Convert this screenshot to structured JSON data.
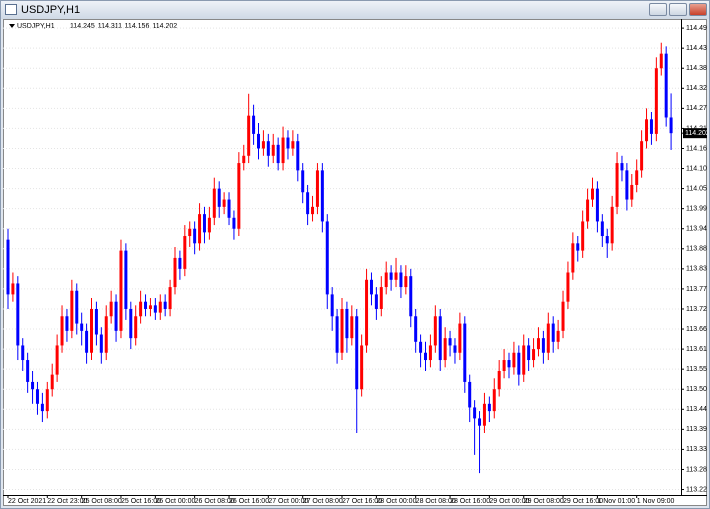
{
  "window_title": "USDJPY,H1",
  "chart_data": {
    "type": "candlestick",
    "symbol": "USDJPY,H1",
    "up_color": "#ff0000",
    "down_color": "#0000ff",
    "grid": true,
    "ylim": [
      113.21,
      114.515
    ],
    "yticks": [
      {
        "value": 114.49,
        "label": "114.490"
      },
      114.435,
      {
        "value": 114.38,
        "label": "114.380"
      },
      114.325,
      {
        "value": 114.27,
        "label": "114.270"
      },
      114.215,
      {
        "value": 114.16,
        "label": "114.160"
      },
      114.105,
      {
        "value": 114.05,
        "label": "114.050"
      },
      113.995,
      {
        "value": 113.94,
        "label": "113.940"
      },
      113.885,
      {
        "value": 113.83,
        "label": "113.830"
      },
      113.775,
      {
        "value": 113.72,
        "label": "113.720"
      },
      113.665,
      {
        "value": 113.61,
        "label": "113.610"
      },
      113.555,
      {
        "value": 113.5,
        "label": "113.500"
      },
      113.445,
      {
        "value": 113.39,
        "label": "113.390"
      },
      113.335,
      {
        "value": 113.28,
        "label": "113.280"
      },
      113.225
    ],
    "categories": [
      "22 Oct 2021",
      null,
      null,
      null,
      null,
      null,
      null,
      null,
      "22 Oct 23:00",
      null,
      null,
      null,
      null,
      null,
      null,
      "25 Oct 08:00",
      null,
      null,
      null,
      null,
      null,
      null,
      null,
      "25 Oct 16:00",
      null,
      null,
      null,
      null,
      null,
      null,
      "26 Oct 00:00",
      null,
      null,
      null,
      null,
      null,
      null,
      null,
      "26 Oct 08:00",
      null,
      null,
      null,
      null,
      null,
      null,
      "26 Oct 16:00",
      null,
      null,
      null,
      null,
      null,
      null,
      null,
      "27 Oct 00:00",
      null,
      null,
      null,
      null,
      null,
      null,
      "27 Oct 08:00",
      null,
      null,
      null,
      null,
      null,
      null,
      null,
      "27 Oct 16:00",
      null,
      null,
      null,
      null,
      null,
      null,
      "28 Oct 00:00",
      null,
      null,
      null,
      null,
      null,
      null,
      null,
      "28 Oct 08:00",
      null,
      null,
      null,
      null,
      null,
      null,
      "28 Oct 16:00",
      null,
      null,
      null,
      null,
      null,
      null,
      null,
      "29 Oct 00:00",
      null,
      null,
      null,
      null,
      null,
      null,
      "29 Oct 08:00",
      null,
      null,
      null,
      null,
      null,
      null,
      null,
      "29 Oct 16:00",
      null,
      null,
      null,
      null,
      null,
      null,
      "1 Nov 01:00",
      null,
      null,
      null,
      null,
      null,
      null,
      null,
      "1 Nov 09:00",
      null,
      null,
      null,
      null,
      null,
      null,
      null
    ],
    "open": [
      113.91,
      113.76,
      113.79,
      113.62,
      113.58,
      113.52,
      113.5,
      113.46,
      113.44,
      113.5,
      113.54,
      113.62,
      113.7,
      113.66,
      113.77,
      113.68,
      113.66,
      113.6,
      113.72,
      113.65,
      113.6,
      113.7,
      113.74,
      113.66,
      113.88,
      113.72,
      113.64,
      113.7,
      113.74,
      113.72,
      113.73,
      113.71,
      113.74,
      113.72,
      113.78,
      113.86,
      113.83,
      113.92,
      113.94,
      113.9,
      113.98,
      113.93,
      113.97,
      114.05,
      114.0,
      114.02,
      113.97,
      113.94,
      114.12,
      114.14,
      114.25,
      114.2,
      114.16,
      114.18,
      114.14,
      114.17,
      114.12,
      114.19,
      114.16,
      114.18,
      114.1,
      114.04,
      113.98,
      114.0,
      114.1,
      113.96,
      113.76,
      113.7,
      113.6,
      113.72,
      113.64,
      113.7,
      113.5,
      113.62,
      113.8,
      113.76,
      113.72,
      113.78,
      113.82,
      113.8,
      113.82,
      113.78,
      113.81,
      113.7,
      113.63,
      113.6,
      113.58,
      113.62,
      113.7,
      113.58,
      113.64,
      113.62,
      113.6,
      113.68,
      113.52,
      113.45,
      113.42,
      113.4,
      113.46,
      113.44,
      113.5,
      113.55,
      113.58,
      113.56,
      113.6,
      113.54,
      113.62,
      113.58,
      113.61,
      113.64,
      113.6,
      113.68,
      113.63,
      113.66,
      113.74,
      113.82,
      113.9,
      113.88,
      113.96,
      114.02,
      114.05,
      113.96,
      113.92,
      113.9,
      114.0,
      114.12,
      114.1,
      114.02,
      114.06,
      114.1,
      114.18,
      114.24,
      114.2,
      114.38,
      114.42,
      114.245
    ],
    "high": [
      113.94,
      113.82,
      113.81,
      113.64,
      113.6,
      113.55,
      113.52,
      113.49,
      113.52,
      113.57,
      113.65,
      113.73,
      113.72,
      113.8,
      113.79,
      113.71,
      113.68,
      113.75,
      113.74,
      113.67,
      113.73,
      113.77,
      113.76,
      113.91,
      113.9,
      113.74,
      113.73,
      113.77,
      113.76,
      113.75,
      113.75,
      113.76,
      113.76,
      113.8,
      113.89,
      113.88,
      113.95,
      113.96,
      113.96,
      114.01,
      114.0,
      114.0,
      114.08,
      114.07,
      114.04,
      114.04,
      113.99,
      114.15,
      114.17,
      114.31,
      114.28,
      114.23,
      114.21,
      114.2,
      114.2,
      114.19,
      114.22,
      114.21,
      114.21,
      114.2,
      114.12,
      114.06,
      114.03,
      114.12,
      114.12,
      113.98,
      113.78,
      113.72,
      113.75,
      113.74,
      113.73,
      113.72,
      113.65,
      113.83,
      113.82,
      113.78,
      113.81,
      113.85,
      113.84,
      113.86,
      113.84,
      113.84,
      113.83,
      113.72,
      113.65,
      113.63,
      113.65,
      113.73,
      113.72,
      113.67,
      113.66,
      113.64,
      113.71,
      113.7,
      113.54,
      113.47,
      113.44,
      113.49,
      113.48,
      113.53,
      113.58,
      113.61,
      113.6,
      113.63,
      113.62,
      113.65,
      113.64,
      113.64,
      113.67,
      113.66,
      113.71,
      113.7,
      113.69,
      113.77,
      113.85,
      113.93,
      113.92,
      113.99,
      114.05,
      114.08,
      114.07,
      113.98,
      113.94,
      114.03,
      114.15,
      114.14,
      114.12,
      114.09,
      114.13,
      114.21,
      114.27,
      114.26,
      114.41,
      114.45,
      114.44,
      114.311
    ],
    "low": [
      113.72,
      113.74,
      113.58,
      113.55,
      113.49,
      113.46,
      113.43,
      113.41,
      113.42,
      113.48,
      113.52,
      113.6,
      113.63,
      113.64,
      113.65,
      113.62,
      113.57,
      113.58,
      113.62,
      113.57,
      113.58,
      113.68,
      113.63,
      113.64,
      113.69,
      113.61,
      113.62,
      113.68,
      113.7,
      113.7,
      113.69,
      113.69,
      113.7,
      113.7,
      113.76,
      113.8,
      113.81,
      113.89,
      113.87,
      113.88,
      113.9,
      113.91,
      113.95,
      113.97,
      113.98,
      113.95,
      113.91,
      113.92,
      114.1,
      114.12,
      114.17,
      114.13,
      114.14,
      114.11,
      114.12,
      114.1,
      114.1,
      114.13,
      114.14,
      114.07,
      114.01,
      113.95,
      113.96,
      113.98,
      113.93,
      113.72,
      113.66,
      113.57,
      113.58,
      113.6,
      113.62,
      113.38,
      113.48,
      113.6,
      113.73,
      113.69,
      113.7,
      113.76,
      113.77,
      113.78,
      113.75,
      113.76,
      113.67,
      113.6,
      113.56,
      113.55,
      113.56,
      113.6,
      113.55,
      113.56,
      113.59,
      113.57,
      113.58,
      113.49,
      113.41,
      113.32,
      113.27,
      113.38,
      113.41,
      113.42,
      113.48,
      113.53,
      113.53,
      113.54,
      113.51,
      113.52,
      113.55,
      113.56,
      113.59,
      113.57,
      113.58,
      113.6,
      113.61,
      113.64,
      113.72,
      113.8,
      113.85,
      113.86,
      113.94,
      114.0,
      113.93,
      113.89,
      113.86,
      113.88,
      113.98,
      114.07,
      113.99,
      114.0,
      114.04,
      114.08,
      114.16,
      114.17,
      114.18,
      114.36,
      114.22,
      114.156
    ],
    "close": [
      113.76,
      113.79,
      113.62,
      113.58,
      113.52,
      113.5,
      113.46,
      113.44,
      113.5,
      113.54,
      113.62,
      113.7,
      113.66,
      113.77,
      113.68,
      113.66,
      113.6,
      113.72,
      113.65,
      113.6,
      113.7,
      113.74,
      113.66,
      113.88,
      113.72,
      113.64,
      113.7,
      113.74,
      113.72,
      113.73,
      113.71,
      113.74,
      113.72,
      113.78,
      113.86,
      113.83,
      113.92,
      113.94,
      113.9,
      113.98,
      113.93,
      113.97,
      114.05,
      114.0,
      114.02,
      113.97,
      113.94,
      114.12,
      114.14,
      114.25,
      114.2,
      114.16,
      114.18,
      114.14,
      114.17,
      114.12,
      114.19,
      114.16,
      114.18,
      114.1,
      114.04,
      113.98,
      114.0,
      114.1,
      113.96,
      113.76,
      113.7,
      113.6,
      113.72,
      113.64,
      113.7,
      113.5,
      113.62,
      113.8,
      113.76,
      113.72,
      113.78,
      113.82,
      113.8,
      113.82,
      113.78,
      113.81,
      113.7,
      113.63,
      113.6,
      113.58,
      113.62,
      113.7,
      113.58,
      113.64,
      113.62,
      113.6,
      113.68,
      113.52,
      113.45,
      113.42,
      113.4,
      113.46,
      113.44,
      113.5,
      113.55,
      113.58,
      113.56,
      113.6,
      113.54,
      113.62,
      113.58,
      113.61,
      113.64,
      113.6,
      113.68,
      113.63,
      113.66,
      113.74,
      113.82,
      113.9,
      113.88,
      113.96,
      114.02,
      114.05,
      113.96,
      113.92,
      113.9,
      114.0,
      114.12,
      114.1,
      114.02,
      114.06,
      114.1,
      114.18,
      114.24,
      114.2,
      114.38,
      114.42,
      114.245,
      114.202
    ]
  }
}
